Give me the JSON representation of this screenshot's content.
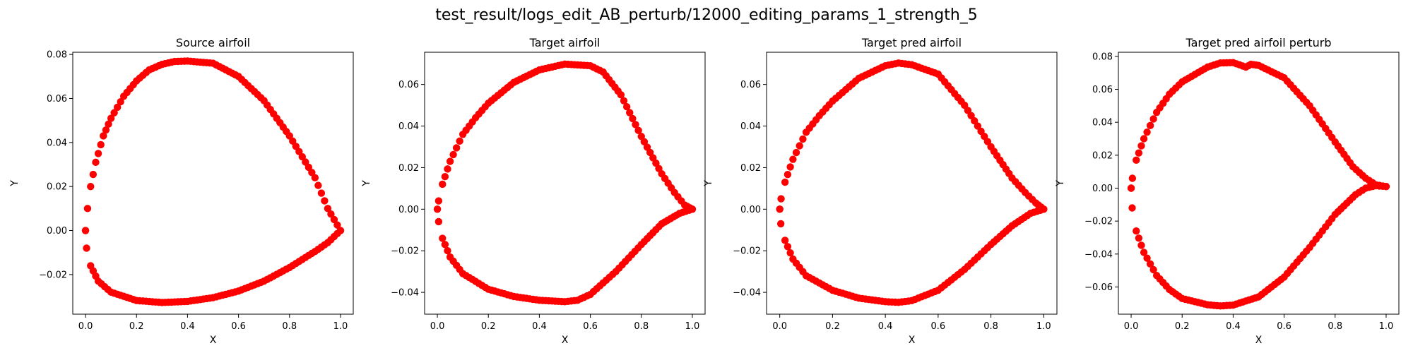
{
  "figure_title": "test_result/logs_edit_AB_perturb/12000_editing_params_1_strength_5",
  "chart_data": [
    {
      "type": "scatter",
      "title": "Source airfoil",
      "xlabel": "X",
      "ylabel": "Y",
      "xlim": [
        -0.05,
        1.05
      ],
      "ylim": [
        -0.038,
        0.081
      ],
      "xticks": [
        "0.0",
        "0.2",
        "0.4",
        "0.6",
        "0.8",
        "1.0"
      ],
      "yticks": [
        "−0.02",
        "0.00",
        "0.02",
        "0.04",
        "0.06",
        "0.08"
      ],
      "color": "#ff0000",
      "marker": "circle",
      "series": [
        {
          "upper": [
            [
              1.0,
              0.0
            ],
            [
              0.95,
              0.01
            ],
            [
              0.9,
              0.024
            ],
            [
              0.8,
              0.043
            ],
            [
              0.7,
              0.059
            ],
            [
              0.6,
              0.07
            ],
            [
              0.5,
              0.076
            ],
            [
              0.4,
              0.077
            ],
            [
              0.35,
              0.0768
            ],
            [
              0.3,
              0.0755
            ],
            [
              0.25,
              0.073
            ],
            [
              0.2,
              0.068
            ],
            [
              0.15,
              0.061
            ],
            [
              0.1,
              0.051
            ],
            [
              0.07,
              0.043
            ],
            [
              0.04,
              0.031
            ],
            [
              0.02,
              0.02
            ],
            [
              0.008,
              0.01
            ],
            [
              0.0,
              0.0
            ]
          ],
          "lower": [
            [
              0.0,
              0.0
            ],
            [
              0.004,
              -0.008
            ],
            [
              0.02,
              -0.016
            ],
            [
              0.05,
              -0.023
            ],
            [
              0.1,
              -0.028
            ],
            [
              0.2,
              -0.0318
            ],
            [
              0.3,
              -0.0327
            ],
            [
              0.4,
              -0.0322
            ],
            [
              0.5,
              -0.0305
            ],
            [
              0.6,
              -0.0275
            ],
            [
              0.7,
              -0.023
            ],
            [
              0.8,
              -0.0168
            ],
            [
              0.9,
              -0.0095
            ],
            [
              0.95,
              -0.0055
            ],
            [
              1.0,
              0.0
            ]
          ]
        }
      ]
    },
    {
      "type": "scatter",
      "title": "Target airfoil",
      "xlabel": "X",
      "ylabel": "Y",
      "xlim": [
        -0.05,
        1.05
      ],
      "ylim": [
        -0.0505,
        0.0755
      ],
      "xticks": [
        "0.0",
        "0.2",
        "0.4",
        "0.6",
        "0.8",
        "1.0"
      ],
      "yticks": [
        "−0.04",
        "−0.02",
        "0.00",
        "0.02",
        "0.04",
        "0.06"
      ],
      "color": "#ff0000",
      "marker": "circle",
      "series": [
        {
          "upper": [
            [
              1.0,
              0.0
            ],
            [
              0.97,
              0.002
            ],
            [
              0.93,
              0.008
            ],
            [
              0.88,
              0.017
            ],
            [
              0.8,
              0.035
            ],
            [
              0.72,
              0.055
            ],
            [
              0.65,
              0.066
            ],
            [
              0.6,
              0.069
            ],
            [
              0.5,
              0.0698
            ],
            [
              0.4,
              0.067
            ],
            [
              0.3,
              0.061
            ],
            [
              0.2,
              0.051
            ],
            [
              0.15,
              0.044
            ],
            [
              0.1,
              0.036
            ],
            [
              0.05,
              0.023
            ],
            [
              0.02,
              0.012
            ],
            [
              0.005,
              0.004
            ],
            [
              0.0,
              0.0
            ]
          ],
          "lower": [
            [
              0.0,
              0.0
            ],
            [
              0.005,
              -0.006
            ],
            [
              0.02,
              -0.014
            ],
            [
              0.05,
              -0.023
            ],
            [
              0.1,
              -0.031
            ],
            [
              0.2,
              -0.0385
            ],
            [
              0.3,
              -0.042
            ],
            [
              0.4,
              -0.0438
            ],
            [
              0.5,
              -0.0445
            ],
            [
              0.55,
              -0.0438
            ],
            [
              0.6,
              -0.041
            ],
            [
              0.7,
              -0.03
            ],
            [
              0.8,
              -0.017
            ],
            [
              0.88,
              -0.007
            ],
            [
              0.95,
              -0.002
            ],
            [
              1.0,
              0.0
            ]
          ]
        }
      ]
    },
    {
      "type": "scatter",
      "title": "Target pred airfoil",
      "xlabel": "X",
      "ylabel": "Y",
      "xlim": [
        -0.05,
        1.05
      ],
      "ylim": [
        -0.0505,
        0.0755
      ],
      "xticks": [
        "0.0",
        "0.2",
        "0.4",
        "0.6",
        "0.8",
        "1.0"
      ],
      "yticks": [
        "−0.04",
        "−0.02",
        "0.00",
        "0.02",
        "0.04",
        "0.06"
      ],
      "color": "#ff0000",
      "marker": "circle",
      "series": [
        {
          "upper": [
            [
              1.0,
              0.0
            ],
            [
              0.97,
              0.003
            ],
            [
              0.93,
              0.008
            ],
            [
              0.88,
              0.015
            ],
            [
              0.8,
              0.03
            ],
            [
              0.7,
              0.05
            ],
            [
              0.6,
              0.065
            ],
            [
              0.5,
              0.0695
            ],
            [
              0.45,
              0.0703
            ],
            [
              0.4,
              0.069
            ],
            [
              0.3,
              0.063
            ],
            [
              0.2,
              0.052
            ],
            [
              0.15,
              0.045
            ],
            [
              0.1,
              0.037
            ],
            [
              0.05,
              0.024
            ],
            [
              0.02,
              0.013
            ],
            [
              0.005,
              0.005
            ],
            [
              0.0,
              0.0
            ]
          ],
          "lower": [
            [
              0.0,
              0.0
            ],
            [
              0.004,
              -0.007
            ],
            [
              0.02,
              -0.015
            ],
            [
              0.05,
              -0.024
            ],
            [
              0.1,
              -0.032
            ],
            [
              0.2,
              -0.039
            ],
            [
              0.3,
              -0.0428
            ],
            [
              0.4,
              -0.0445
            ],
            [
              0.45,
              -0.0448
            ],
            [
              0.5,
              -0.044
            ],
            [
              0.6,
              -0.039
            ],
            [
              0.7,
              -0.029
            ],
            [
              0.8,
              -0.017
            ],
            [
              0.88,
              -0.008
            ],
            [
              0.95,
              -0.002
            ],
            [
              1.0,
              0.0
            ]
          ]
        }
      ]
    },
    {
      "type": "scatter",
      "title": "Target pred airfoil perturb",
      "xlabel": "X",
      "ylabel": "Y",
      "xlim": [
        -0.05,
        1.05
      ],
      "ylim": [
        -0.0765,
        0.0825
      ],
      "xticks": [
        "0.0",
        "0.2",
        "0.4",
        "0.6",
        "0.8",
        "1.0"
      ],
      "yticks": [
        "−0.06",
        "−0.04",
        "−0.02",
        "0.00",
        "0.02",
        "0.04",
        "0.06",
        "0.08"
      ],
      "color": "#ff0000",
      "marker": "circle",
      "series": [
        {
          "upper": [
            [
              1.0,
              0.001
            ],
            [
              0.96,
              0.002
            ],
            [
              0.92,
              0.006
            ],
            [
              0.87,
              0.013
            ],
            [
              0.8,
              0.028
            ],
            [
              0.7,
              0.05
            ],
            [
              0.6,
              0.067
            ],
            [
              0.5,
              0.0745
            ],
            [
              0.47,
              0.0752
            ],
            [
              0.45,
              0.0735
            ],
            [
              0.4,
              0.0762
            ],
            [
              0.35,
              0.076
            ],
            [
              0.3,
              0.0735
            ],
            [
              0.2,
              0.0645
            ],
            [
              0.15,
              0.057
            ],
            [
              0.1,
              0.046
            ],
            [
              0.05,
              0.03
            ],
            [
              0.02,
              0.017
            ],
            [
              0.005,
              0.006
            ],
            [
              0.0,
              0.0
            ]
          ],
          "lower": [
            [
              0.0,
              0.0
            ],
            [
              0.004,
              -0.012
            ],
            [
              0.02,
              -0.026
            ],
            [
              0.05,
              -0.039
            ],
            [
              0.1,
              -0.053
            ],
            [
              0.15,
              -0.0615
            ],
            [
              0.2,
              -0.067
            ],
            [
              0.3,
              -0.0708
            ],
            [
              0.35,
              -0.0715
            ],
            [
              0.4,
              -0.071
            ],
            [
              0.5,
              -0.066
            ],
            [
              0.6,
              -0.054
            ],
            [
              0.7,
              -0.036
            ],
            [
              0.8,
              -0.016
            ],
            [
              0.88,
              -0.004
            ],
            [
              0.92,
              0.0
            ],
            [
              0.96,
              0.0015
            ],
            [
              1.0,
              0.001
            ]
          ]
        }
      ]
    }
  ]
}
